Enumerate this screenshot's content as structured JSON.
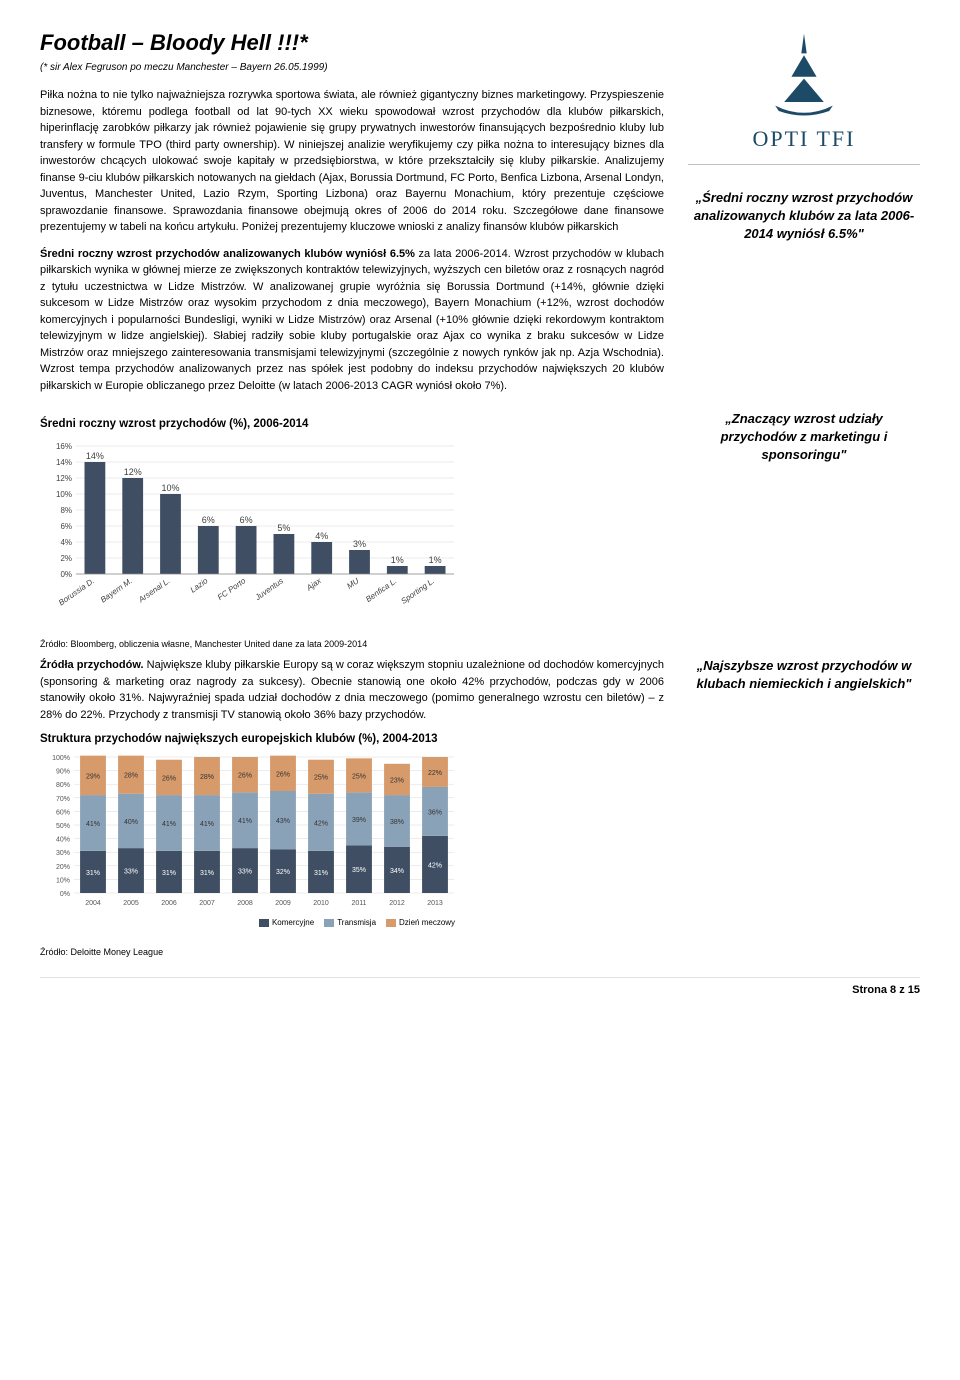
{
  "title": "Football – Bloody Hell !!!*",
  "subtitle": "(* sir Alex Fegruson po meczu Manchester – Bayern 26.05.1999)",
  "logo_name": "OPTI TFI",
  "logo_color": "#1d4a66",
  "para1": "Piłka nożna to nie tylko najważniejsza rozrywka sportowa świata, ale również gigantyczny biznes marketingowy. Przyspieszenie biznesowe, któremu podlega football od lat 90-tych XX wieku spowodował wzrost przychodów dla klubów piłkarskich, hiperinflację zarobków piłkarzy jak również pojawienie się grupy prywatnych inwestorów finansujących bezpośrednio kluby lub transfery w formule TPO (third party ownership). W niniejszej analizie weryfikujemy czy piłka nożna to interesujący biznes dla inwestorów chcących ulokować swoje kapitały w przedsiębiorstwa, w które przekształciły się kluby piłkarskie. Analizujemy finanse 9-ciu klubów piłkarskich notowanych na giełdach (Ajax, Borussia Dortmund, FC Porto, Benfica Lizbona, Arsenal Londyn, Juventus, Manchester United, Lazio Rzym, Sporting Lizbona) oraz Bayernu Monachium, który prezentuje częściowe sprawozdanie finansowe. Sprawozdania finansowe obejmują okres of 2006 do 2014 roku. Szczegółowe dane finansowe prezentujemy w tabeli na końcu artykułu. Poniżej prezentujemy kluczowe wnioski z analizy finansów klubów piłkarskich",
  "para2_prefix": "Średni roczny wzrost przychodów analizowanych klubów wyniósł 6.5%",
  "para2_rest": " za lata 2006-2014. Wzrost przychodów w klubach piłkarskich wynika w głównej mierze ze zwiększonych kontraktów telewizyjnych, wyższych cen biletów oraz z rosnących nagród z tytułu uczestnictwa w Lidze Mistrzów. W analizowanej grupie wyróżnia się Borussia Dortmund (+14%, głównie dzięki sukcesom w Lidze Mistrzów oraz wysokim przychodom z dnia meczowego), Bayern Monachium (+12%, wzrost dochodów komercyjnych i popularności Bundesligi, wyniki w Lidze Mistrzów) oraz Arsenal (+10% głównie dzięki rekordowym kontraktom telewizyjnym w lidze angielskiej). Słabiej radziły sobie kluby portugalskie oraz Ajax co wynika z braku sukcesów w Lidze Mistrzów oraz mniejszego zainteresowania transmisjami telewizyjnymi (szczególnie z nowych rynków jak np. Azja Wschodnia). Wzrost tempa przychodów analizowanych przez nas spółek jest podobny do indeksu przychodów największych 20 klubów piłkarskich w Europie obliczanego przez Deloitte (w latach 2006-2013 CAGR wyniósł około 7%).",
  "side_quote1": "„Średni roczny wzrost przychodów analizowanych klubów za lata 2006-2014 wyniósł 6.5%\"",
  "chart1_heading": "Średni roczny wzrost przychodów (%), 2006-2014",
  "side_quote2": "„Znaczący wzrost udziały przychodów z marketingu i sponsoringu\"",
  "bar_chart": {
    "yticks": [
      "0%",
      "2%",
      "4%",
      "6%",
      "8%",
      "10%",
      "12%",
      "14%",
      "16%"
    ],
    "ytick_values": [
      0,
      2,
      4,
      6,
      8,
      10,
      12,
      14,
      16
    ],
    "ylim": [
      0,
      16
    ],
    "categories": [
      "Borussia D.",
      "Bayern M.",
      "Arsenal L.",
      "Lazio",
      "FC Porto",
      "Juventus",
      "Ajax",
      "MU",
      "Benfica L.",
      "Sporting L."
    ],
    "values": [
      14,
      12,
      10,
      6,
      6,
      5,
      4,
      3,
      1,
      1
    ],
    "labels": [
      "14%",
      "12%",
      "10%",
      "6%",
      "6%",
      "5%",
      "4%",
      "3%",
      "1%",
      "1%"
    ],
    "bar_color": "#3f4e63",
    "grid_color": "#d8d8d8",
    "text_color": "#3f3f3f",
    "label_fontsize": 9,
    "axis_fontsize": 8
  },
  "source1": "Źródło: Bloomberg, obliczenia własne, Manchester United dane za lata 2009-2014",
  "para3_prefix": "Źródła przychodów.",
  "para3_rest": " Największe kluby piłkarskie Europy są w coraz większym stopniu uzależnione od dochodów komercyjnych (sponsoring & marketing oraz nagrody za sukcesy). Obecnie stanowią one około 42% przychodów, podczas gdy w 2006 stanowiły około 31%. Najwyraźniej spada udział dochodów z dnia meczowego (pomimo generalnego wzrostu cen biletów) – z 28% do 22%. Przychody z transmisji TV stanowią około 36% bazy przychodów.",
  "side_quote3": "„Najszybsze wzrost przychodów w klubach niemieckich i angielskich\"",
  "chart2_heading": "Struktura przychodów największych europejskich klubów (%), 2004-2013",
  "stacked_chart": {
    "years": [
      "2004",
      "2005",
      "2006",
      "2007",
      "2008",
      "2009",
      "2010",
      "2011",
      "2012",
      "2013"
    ],
    "series": [
      {
        "name": "Komercyjne",
        "color": "#3f4e63",
        "values": [
          31,
          33,
          31,
          31,
          33,
          32,
          31,
          35,
          34,
          42
        ]
      },
      {
        "name": "Transmisja",
        "color": "#8aa2b8",
        "values": [
          41,
          40,
          41,
          41,
          41,
          43,
          42,
          39,
          38,
          36
        ]
      },
      {
        "name": "Dzień meczowy",
        "color": "#d79a6b",
        "values": [
          29,
          28,
          26,
          28,
          26,
          26,
          25,
          25,
          23,
          22
        ]
      }
    ],
    "labels_top": [
      "29%",
      "28%",
      "26%",
      "28%",
      "26%",
      "26%",
      "25%",
      "25%",
      "23%",
      "22%"
    ],
    "labels_mid": [
      "41%",
      "40%",
      "41%",
      "41%",
      "41%",
      "43%",
      "42%",
      "39%",
      "38%",
      "36%"
    ],
    "labels_bottom": [
      "31%",
      "33%",
      "31%",
      "31%",
      "33%",
      "32%",
      "31%",
      "35%",
      "34%",
      "42%"
    ],
    "yticks": [
      "0%",
      "10%",
      "20%",
      "30%",
      "40%",
      "50%",
      "60%",
      "70%",
      "80%",
      "90%",
      "100%"
    ],
    "grid_color": "#d8d8d8",
    "axis_fontsize": 7
  },
  "source2": "Źródło: Deloitte Money League",
  "footer": "Strona 8 z 15"
}
